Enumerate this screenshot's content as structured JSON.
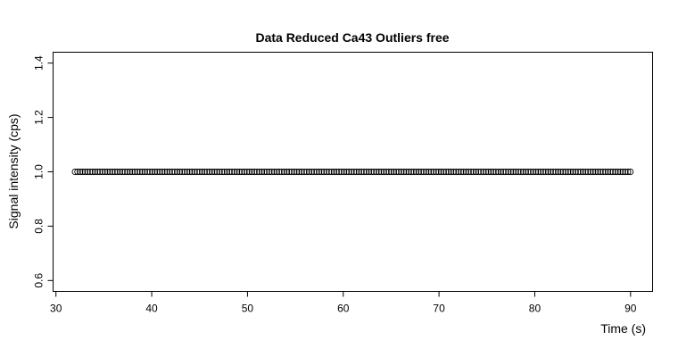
{
  "chart_data": {
    "type": "scatter",
    "title": "Data Reduced Ca43 Outliers free",
    "xlabel": "Time (s)",
    "ylabel": "Signal intensity (cps)",
    "xlim": [
      29.7,
      92.3
    ],
    "ylim": [
      0.56,
      1.44
    ],
    "xticks": [
      30,
      40,
      50,
      60,
      70,
      80,
      90
    ],
    "xtick_labels": [
      "30",
      "40",
      "50",
      "60",
      "70",
      "80",
      "90"
    ],
    "yticks": [
      0.6,
      0.8,
      1.0,
      1.2,
      1.4
    ],
    "ytick_labels": [
      "0.6",
      "0.8",
      "1.0",
      "1.2",
      "1.4"
    ],
    "grid": false,
    "marker": "open-circle",
    "color": "#000000",
    "series": [
      {
        "x_start": 32.0,
        "x_end": 90.0,
        "x_step": 0.26,
        "y": 1.0
      }
    ]
  }
}
